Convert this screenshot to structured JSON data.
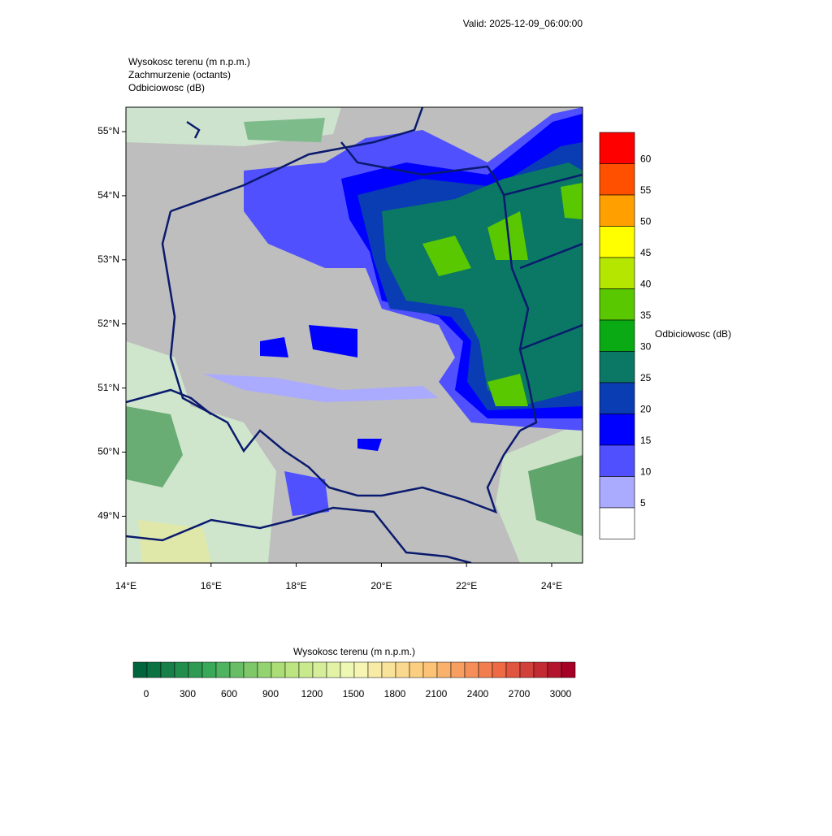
{
  "header": {
    "valid": "Valid: 2025-12-09_06:00:00"
  },
  "titles": [
    "Wysokosc terenu   (m n.p.m.)",
    "Zachmurzenie   (octants)",
    "Odbiciowosc   (dB)"
  ],
  "map": {
    "lat_labels": [
      "55°N",
      "54°N",
      "53°N",
      "52°N",
      "51°N",
      "50°N",
      "49°N"
    ],
    "lon_labels": [
      "14°E",
      "16°E",
      "18°E",
      "20°E",
      "22°E",
      "24°E"
    ]
  },
  "reflectivity_bar": {
    "title": "Odbiciowosc  (dB)",
    "levels": [
      60,
      55,
      50,
      45,
      40,
      35,
      30,
      25,
      20,
      15,
      10,
      5
    ],
    "colors": [
      "#ff0000",
      "#ff5000",
      "#ffa000",
      "#ffff00",
      "#b4e600",
      "#5ac800",
      "#0aaa14",
      "#0a7864",
      "#0a3cb4",
      "#0000ff",
      "#5050ff",
      "#aaaaff",
      "#ffffff"
    ]
  },
  "terrain_bar": {
    "title": "Wysokosc terenu  (m n.p.m.)",
    "levels": [
      0,
      300,
      600,
      900,
      1200,
      1500,
      1800,
      2100,
      2400,
      2700,
      3000
    ]
  }
}
